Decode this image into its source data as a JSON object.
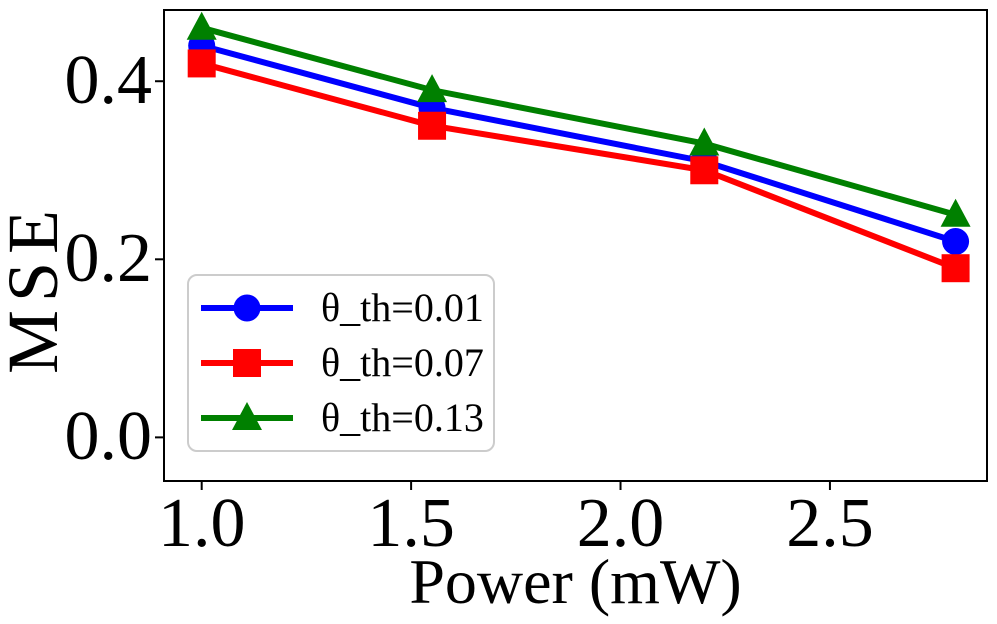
{
  "chart_data": {
    "type": "line",
    "title": "",
    "xlabel": "Power (mW)",
    "ylabel": "MSE",
    "x": [
      1.0,
      1.55,
      2.2,
      2.8
    ],
    "series": [
      {
        "name": "θ_th=0.01",
        "color": "#0000ff",
        "marker": "circle",
        "values": [
          0.44,
          0.37,
          0.31,
          0.22
        ]
      },
      {
        "name": "θ_th=0.07",
        "color": "#ff0000",
        "marker": "square",
        "values": [
          0.42,
          0.35,
          0.3,
          0.19
        ]
      },
      {
        "name": "θ_th=0.13",
        "color": "#008000",
        "marker": "triangle",
        "values": [
          0.46,
          0.39,
          0.33,
          0.25
        ]
      }
    ],
    "x_ticks": [
      1.0,
      1.5,
      2.0,
      2.5
    ],
    "x_tick_labels": [
      "1.0",
      "1.5",
      "2.0",
      "2.5"
    ],
    "y_ticks": [
      0.0,
      0.2,
      0.4
    ],
    "y_tick_labels": [
      "0.0",
      "0.2",
      "0.4"
    ],
    "xlim": [
      0.91,
      2.875
    ],
    "ylim": [
      -0.049,
      0.48
    ],
    "grid": false,
    "legend_position": "lower-left",
    "axis_color": "#000000"
  }
}
